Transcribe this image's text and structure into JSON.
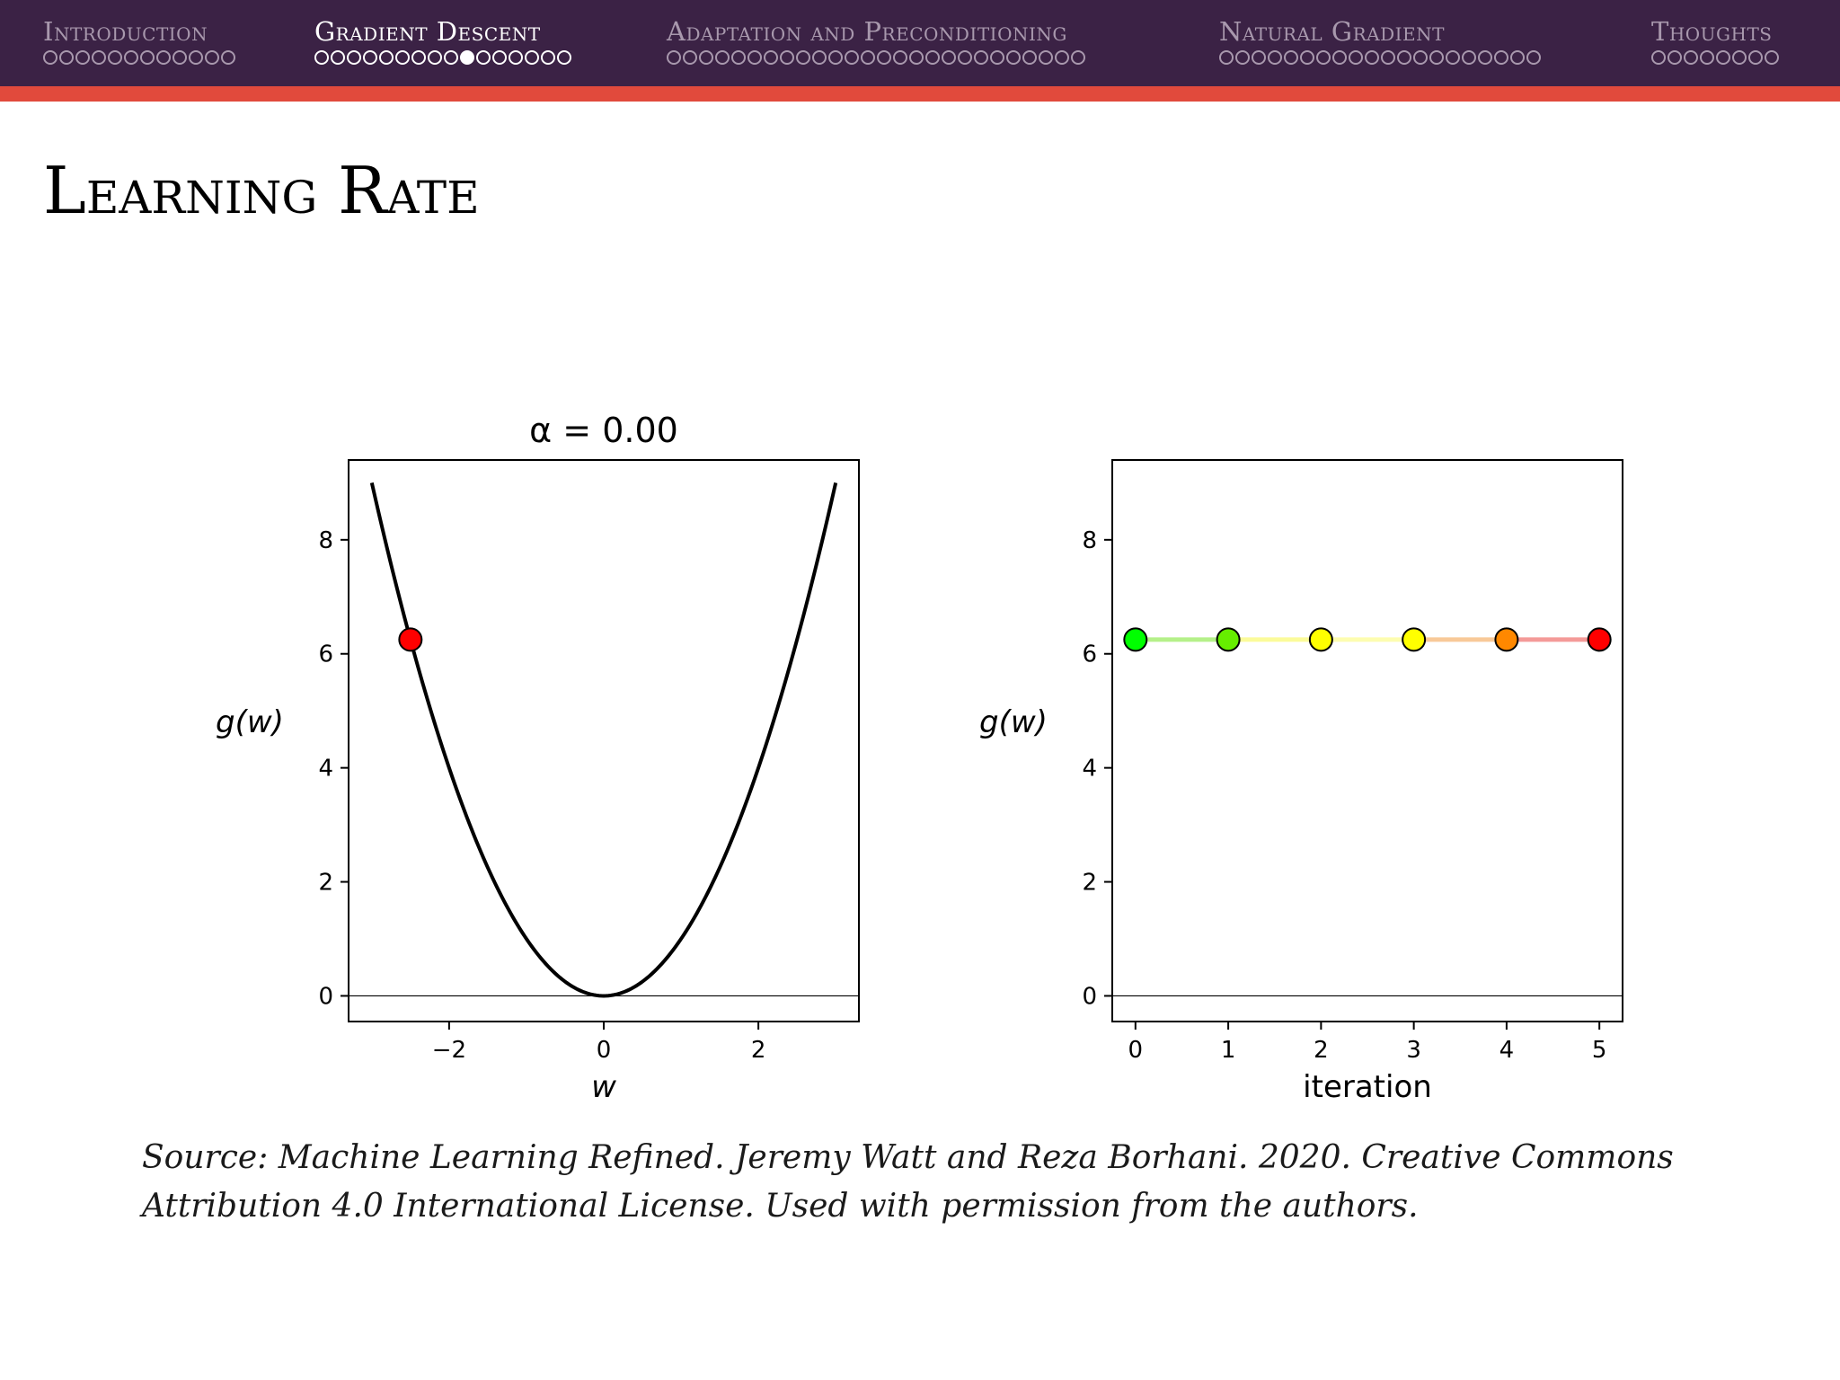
{
  "navigation": {
    "sections": [
      {
        "title": "Introduction",
        "dot_count": 12,
        "current_dot": -1,
        "active": false
      },
      {
        "title": "Gradient Descent",
        "dot_count": 16,
        "current_dot": 9,
        "active": true
      },
      {
        "title": "Adaptation and Preconditioning",
        "dot_count": 26,
        "current_dot": -1,
        "active": false
      },
      {
        "title": "Natural Gradient",
        "dot_count": 20,
        "current_dot": -1,
        "active": false
      },
      {
        "title": "Thoughts",
        "dot_count": 8,
        "current_dot": -1,
        "active": false
      }
    ]
  },
  "slide": {
    "title": "Learning Rate",
    "caption_line1": "Source: Machine Learning Refined. Jeremy Watt and Reza Borhani. 2020. Creative Commons",
    "caption_line2": "Attribution 4.0 International License. Used with permission from the authors."
  },
  "colors": {
    "nav_background": "#3b2245",
    "accent_bar": "#e14a3c",
    "curve": "#000000",
    "point_current": "#ff0000"
  },
  "chart_data": [
    {
      "type": "line",
      "title": "α = 0.00",
      "xlabel": "w",
      "ylabel": "g(w)",
      "function": "w^2",
      "x_domain": [
        -3,
        3
      ],
      "xlim": [
        -3.3,
        3.3
      ],
      "ylim": [
        -0.45,
        9.4
      ],
      "xticks": [
        -2,
        0,
        2
      ],
      "xtick_labels": [
        "−2",
        "0",
        "2"
      ],
      "yticks": [
        0,
        2,
        4,
        6,
        8
      ],
      "ytick_labels": [
        "0",
        "2",
        "4",
        "6",
        "8"
      ],
      "points": [
        {
          "x": -2.5,
          "y": 6.25,
          "color": "#ff0000"
        }
      ],
      "grid": false
    },
    {
      "type": "line",
      "title": "",
      "xlabel": "iteration",
      "ylabel": "g(w)",
      "x": [
        0,
        1,
        2,
        3,
        4,
        5
      ],
      "values": [
        6.25,
        6.25,
        6.25,
        6.25,
        6.25,
        6.25
      ],
      "point_colors": [
        "#00ff00",
        "#66ee00",
        "#ffff00",
        "#ffff00",
        "#ff8800",
        "#ff0000"
      ],
      "segment_colors": [
        "#b5f08a",
        "#fbfb9a",
        "#fdfdb0",
        "#f8c998",
        "#f49a98"
      ],
      "xlim": [
        -0.25,
        5.25
      ],
      "ylim": [
        -0.45,
        9.4
      ],
      "xticks": [
        0,
        1,
        2,
        3,
        4,
        5
      ],
      "xtick_labels": [
        "0",
        "1",
        "2",
        "3",
        "4",
        "5"
      ],
      "yticks": [
        0,
        2,
        4,
        6,
        8
      ],
      "ytick_labels": [
        "0",
        "2",
        "4",
        "6",
        "8"
      ],
      "grid": false
    }
  ]
}
